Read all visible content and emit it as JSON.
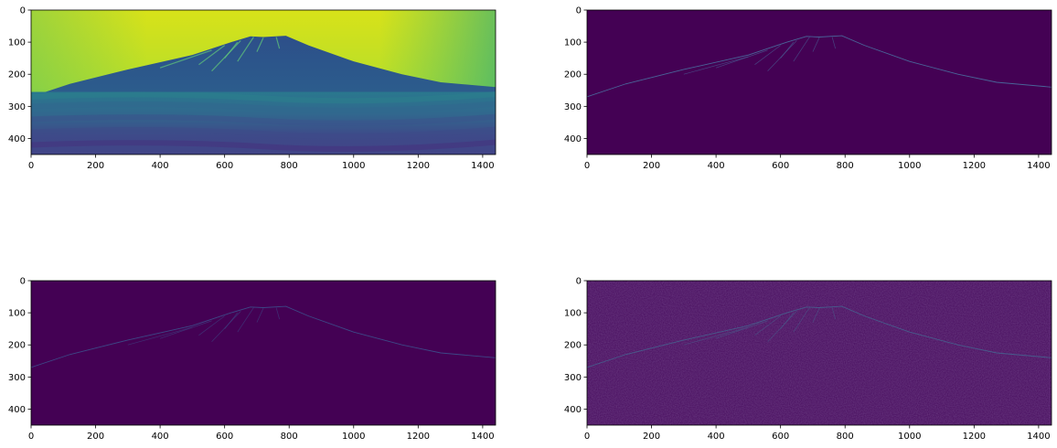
{
  "chart_data": [
    {
      "type": "heatmap",
      "title": "",
      "xlabel": "",
      "ylabel": "",
      "image_extent": {
        "width": 1440,
        "height": 450
      },
      "xlim": [
        0,
        1440
      ],
      "ylim": [
        450,
        0
      ],
      "x_ticks": [
        0,
        200,
        400,
        600,
        800,
        1000,
        1200,
        1400
      ],
      "y_ticks": [
        0,
        100,
        200,
        300,
        400
      ],
      "colormap": "viridis",
      "content": "grayscale-image",
      "colors": {
        "bright": "#d4e21a",
        "mid": "#2a788e",
        "dark": "#440154"
      }
    },
    {
      "type": "heatmap",
      "title": "",
      "xlabel": "",
      "ylabel": "",
      "image_extent": {
        "width": 1440,
        "height": 450
      },
      "xlim": [
        0,
        1440
      ],
      "ylim": [
        450,
        0
      ],
      "x_ticks": [
        0,
        200,
        400,
        600,
        800,
        1000,
        1200,
        1400
      ],
      "y_ticks": [
        0,
        100,
        200,
        300,
        400
      ],
      "colormap": "viridis",
      "content": "edge-map",
      "colors": {
        "background": "#440154",
        "edge": "#4a6fa0"
      }
    },
    {
      "type": "heatmap",
      "title": "",
      "xlabel": "",
      "ylabel": "",
      "image_extent": {
        "width": 1440,
        "height": 450
      },
      "xlim": [
        0,
        1440
      ],
      "ylim": [
        450,
        0
      ],
      "x_ticks": [
        0,
        200,
        400,
        600,
        800,
        1000,
        1200,
        1400
      ],
      "y_ticks": [
        0,
        100,
        200,
        300,
        400
      ],
      "colormap": "viridis",
      "content": "edge-map",
      "colors": {
        "background": "#440154",
        "edge": "#3d4f8c"
      }
    },
    {
      "type": "heatmap",
      "title": "",
      "xlabel": "",
      "ylabel": "",
      "image_extent": {
        "width": 1440,
        "height": 450
      },
      "xlim": [
        0,
        1440
      ],
      "ylim": [
        450,
        0
      ],
      "x_ticks": [
        0,
        200,
        400,
        600,
        800,
        1000,
        1200,
        1400
      ],
      "y_ticks": [
        0,
        100,
        200,
        300,
        400
      ],
      "colormap": "viridis",
      "content": "edge-map-noisy",
      "colors": {
        "background": "#450a5c",
        "edge": "#46628f"
      }
    }
  ]
}
